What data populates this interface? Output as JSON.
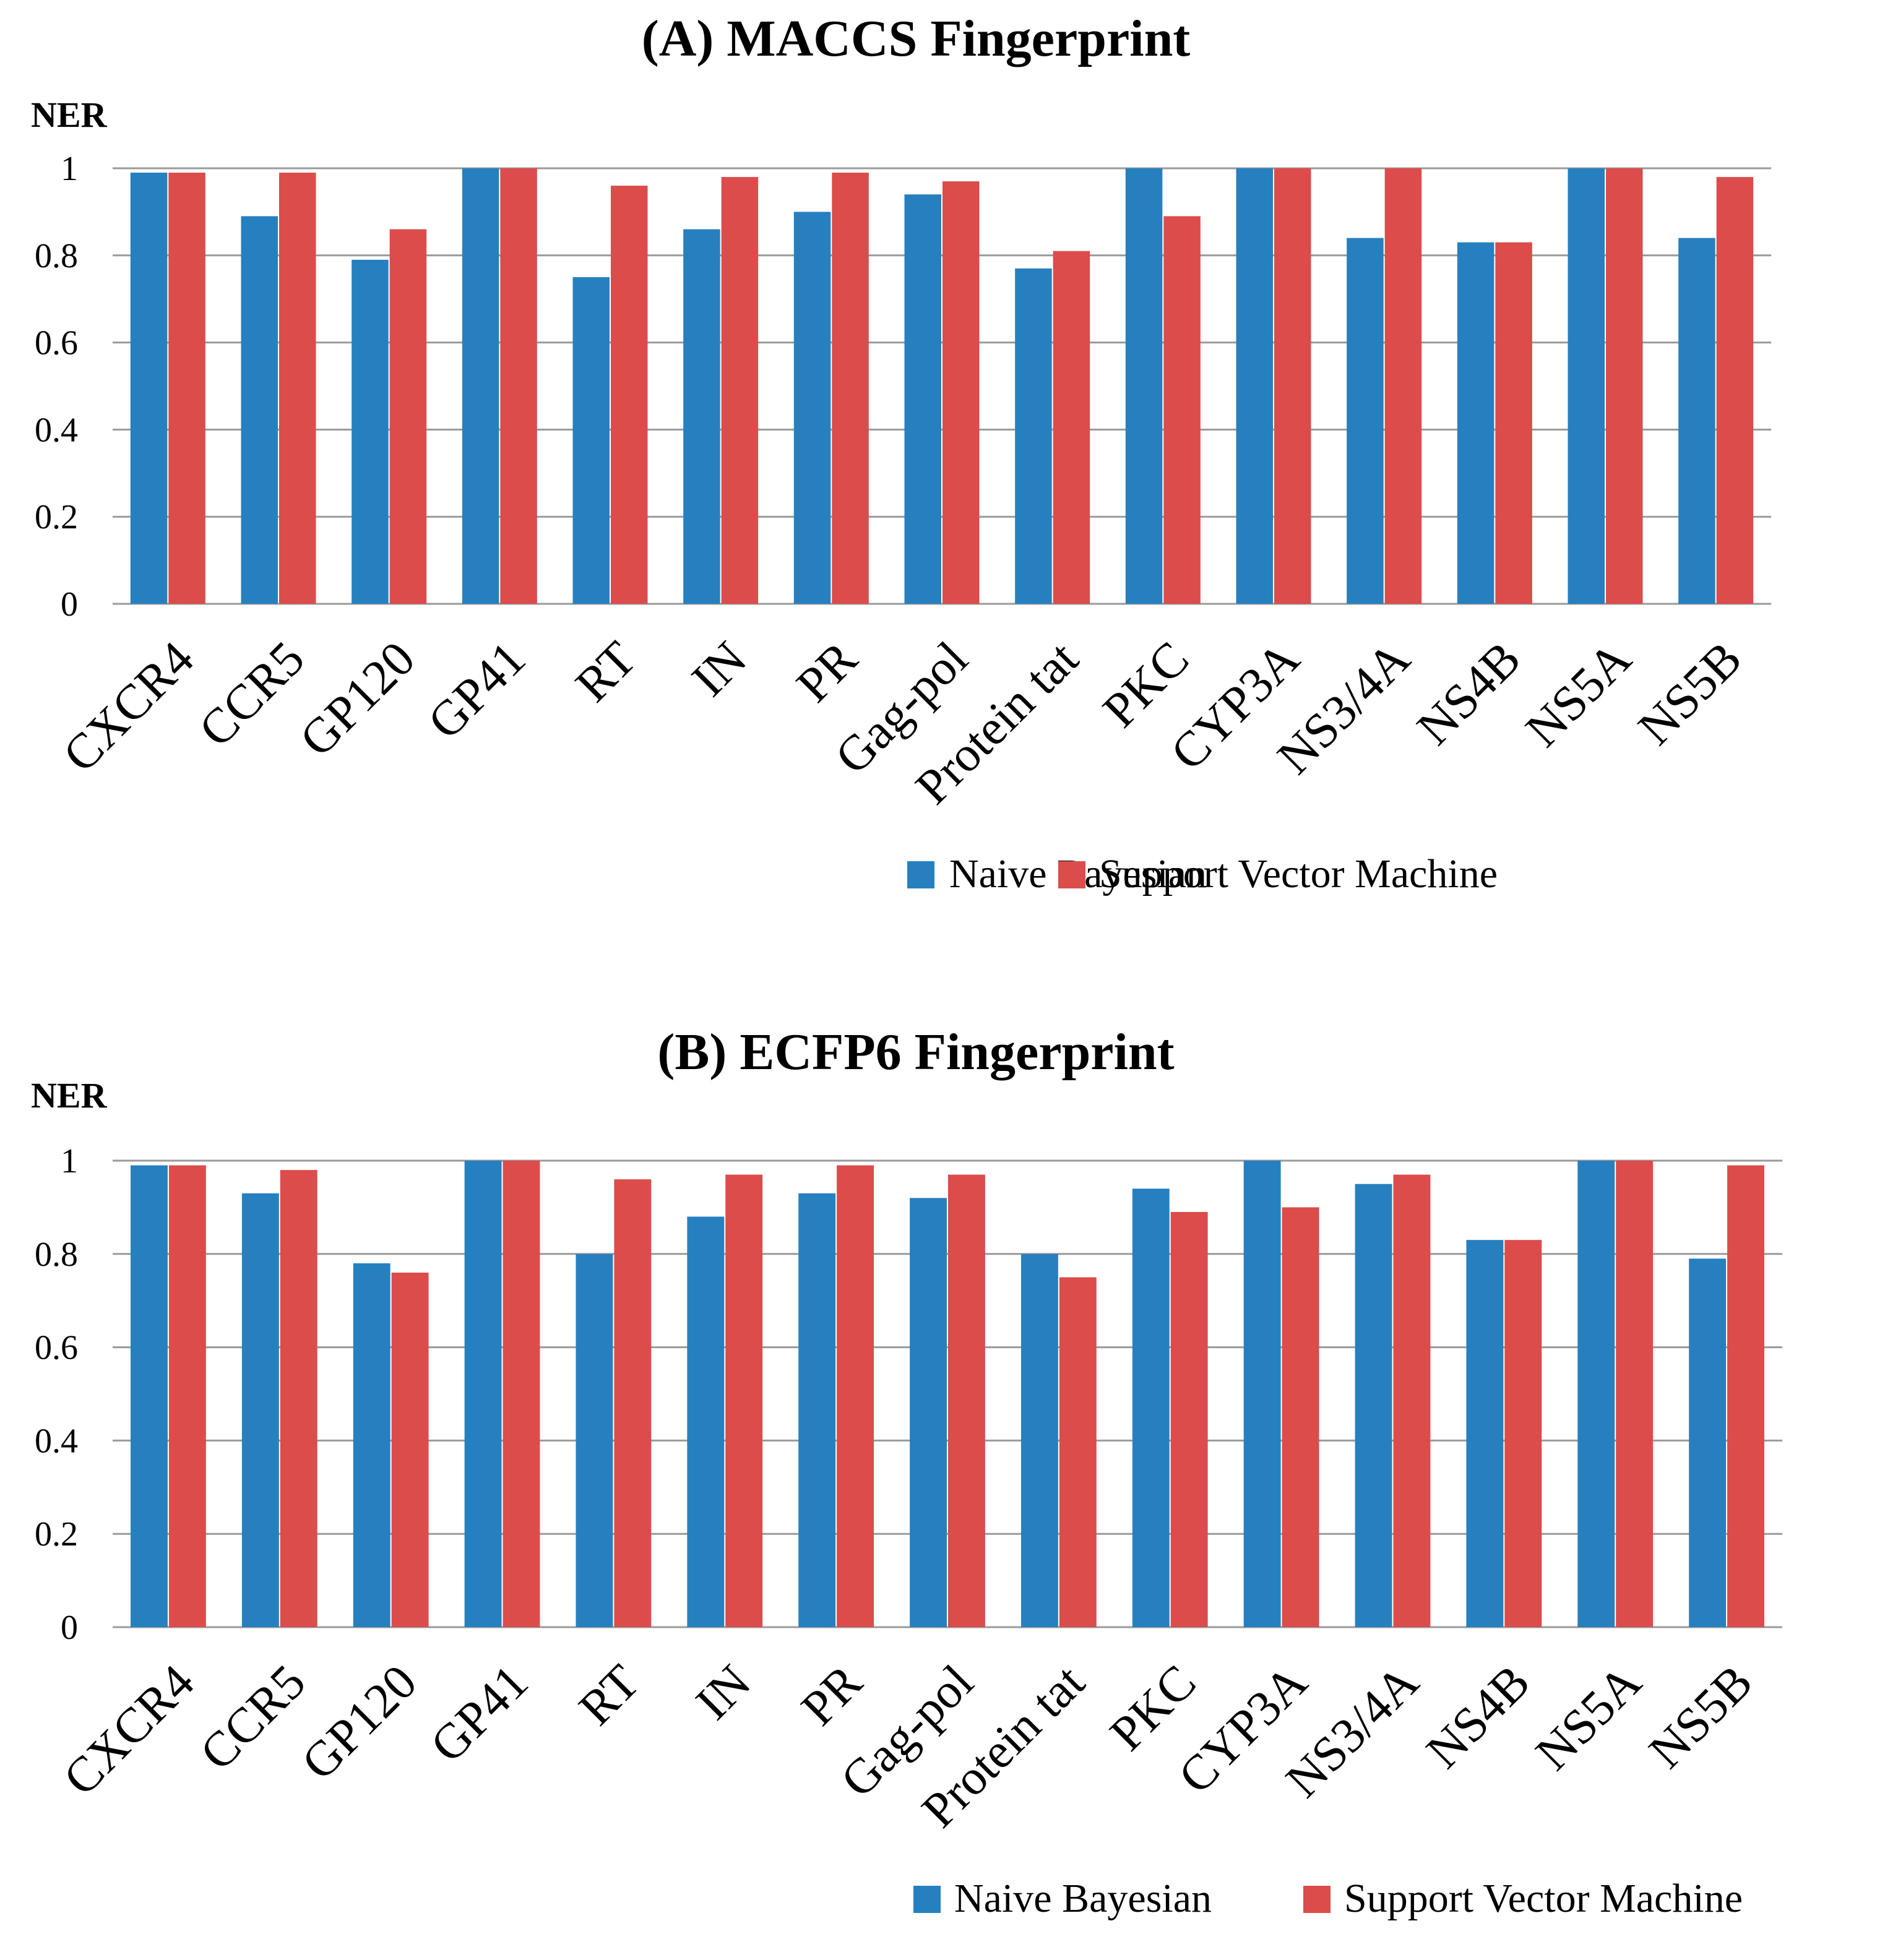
{
  "colors": {
    "naive_bayesian": "#2680BF",
    "svm": "#DB4C4B"
  },
  "chart_data": [
    {
      "type": "bar",
      "title": "(A) MACCS Fingerprint",
      "ylabel": "NER",
      "xlabel": "",
      "ylim": [
        0,
        1
      ],
      "yticks": [
        "0",
        "0.2",
        "0.4",
        "0.6",
        "0.8",
        "1"
      ],
      "grid": true,
      "legend_position": "bottom-right",
      "categories": [
        "CXCR4",
        "CCR5",
        "GP120",
        "GP41",
        "RT",
        "IN",
        "PR",
        "Gag-pol",
        "Protein tat",
        "PKC",
        "CYP3A",
        "NS3/4A",
        "NS4B",
        "NS5A",
        "NS5B"
      ],
      "series": [
        {
          "name": "Naive Bayesian",
          "values": [
            0.99,
            0.89,
            0.79,
            1.0,
            0.75,
            0.86,
            0.9,
            0.94,
            0.77,
            1.0,
            1.0,
            0.84,
            0.83,
            1.0,
            0.84
          ]
        },
        {
          "name": "Support Vector Machine",
          "values": [
            0.99,
            0.99,
            0.86,
            1.0,
            0.96,
            0.98,
            0.99,
            0.97,
            0.81,
            0.89,
            1.0,
            1.0,
            0.83,
            1.0,
            0.98
          ]
        }
      ]
    },
    {
      "type": "bar",
      "title": "(B) ECFP6 Fingerprint",
      "ylabel": "NER",
      "xlabel": "",
      "ylim": [
        0,
        1
      ],
      "yticks": [
        "0",
        "0.2",
        "0.4",
        "0.6",
        "0.8",
        "1"
      ],
      "grid": true,
      "legend_position": "bottom-right",
      "categories": [
        "CXCR4",
        "CCR5",
        "GP120",
        "GP41",
        "RT",
        "IN",
        "PR",
        "Gag-pol",
        "Protein tat",
        "PKC",
        "CYP3A",
        "NS3/4A",
        "NS4B",
        "NS5A",
        "NS5B"
      ],
      "series": [
        {
          "name": "Naive Bayesian",
          "values": [
            0.99,
            0.93,
            0.78,
            1.0,
            0.8,
            0.88,
            0.93,
            0.92,
            0.8,
            0.94,
            1.0,
            0.95,
            0.83,
            1.0,
            0.79
          ]
        },
        {
          "name": "Support Vector Machine",
          "values": [
            0.99,
            0.98,
            0.76,
            1.0,
            0.96,
            0.97,
            0.99,
            0.97,
            0.75,
            0.89,
            0.9,
            0.97,
            0.83,
            1.0,
            0.99
          ]
        }
      ]
    }
  ]
}
